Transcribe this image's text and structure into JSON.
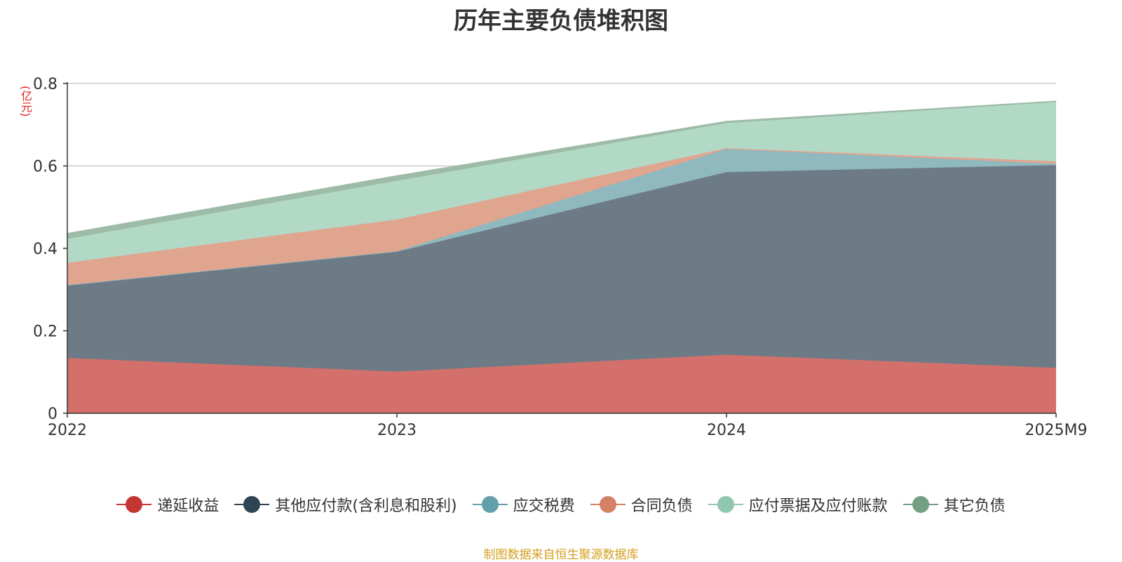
{
  "chart_data": {
    "type": "area",
    "stacked": true,
    "title": "历年主要负债堆积图",
    "ylabel": "(亿元)",
    "xlabel": "",
    "categories": [
      "2022",
      "2023",
      "2024",
      "2025M9"
    ],
    "ylim": [
      0,
      0.8
    ],
    "yticks": [
      0,
      0.2,
      0.4,
      0.6,
      0.8
    ],
    "ytick_labels": [
      "0",
      "0.2",
      "0.4",
      "0.6",
      "0.8"
    ],
    "grid": true,
    "legend_position": "bottom",
    "series": [
      {
        "name": "递延收益",
        "values": [
          0.134,
          0.101,
          0.142,
          0.11
        ],
        "color": "#c23531",
        "fill": "#d4706b"
      },
      {
        "name": "其他应付款(含利息和股利)",
        "values": [
          0.177,
          0.291,
          0.443,
          0.492
        ],
        "color": "#2f4554",
        "fill": "#6d7b86"
      },
      {
        "name": "应交税费",
        "values": [
          0.0,
          0.001,
          0.056,
          0.003
        ],
        "color": "#61a0a8",
        "fill": "#8fb8bf"
      },
      {
        "name": "合同负债",
        "values": [
          0.054,
          0.077,
          0.002,
          0.006
        ],
        "color": "#d48265",
        "fill": "#e0a58f"
      },
      {
        "name": "应付票据及应付账款",
        "values": [
          0.058,
          0.094,
          0.061,
          0.144
        ],
        "color": "#91c7ae",
        "fill": "#b2d8c6"
      },
      {
        "name": "其它负债",
        "values": [
          0.013,
          0.012,
          0.004,
          0.002
        ],
        "color": "#749f83",
        "fill": "#9dbba6"
      }
    ]
  },
  "footer": {
    "source": "制图数据来自恒生聚源数据库"
  }
}
